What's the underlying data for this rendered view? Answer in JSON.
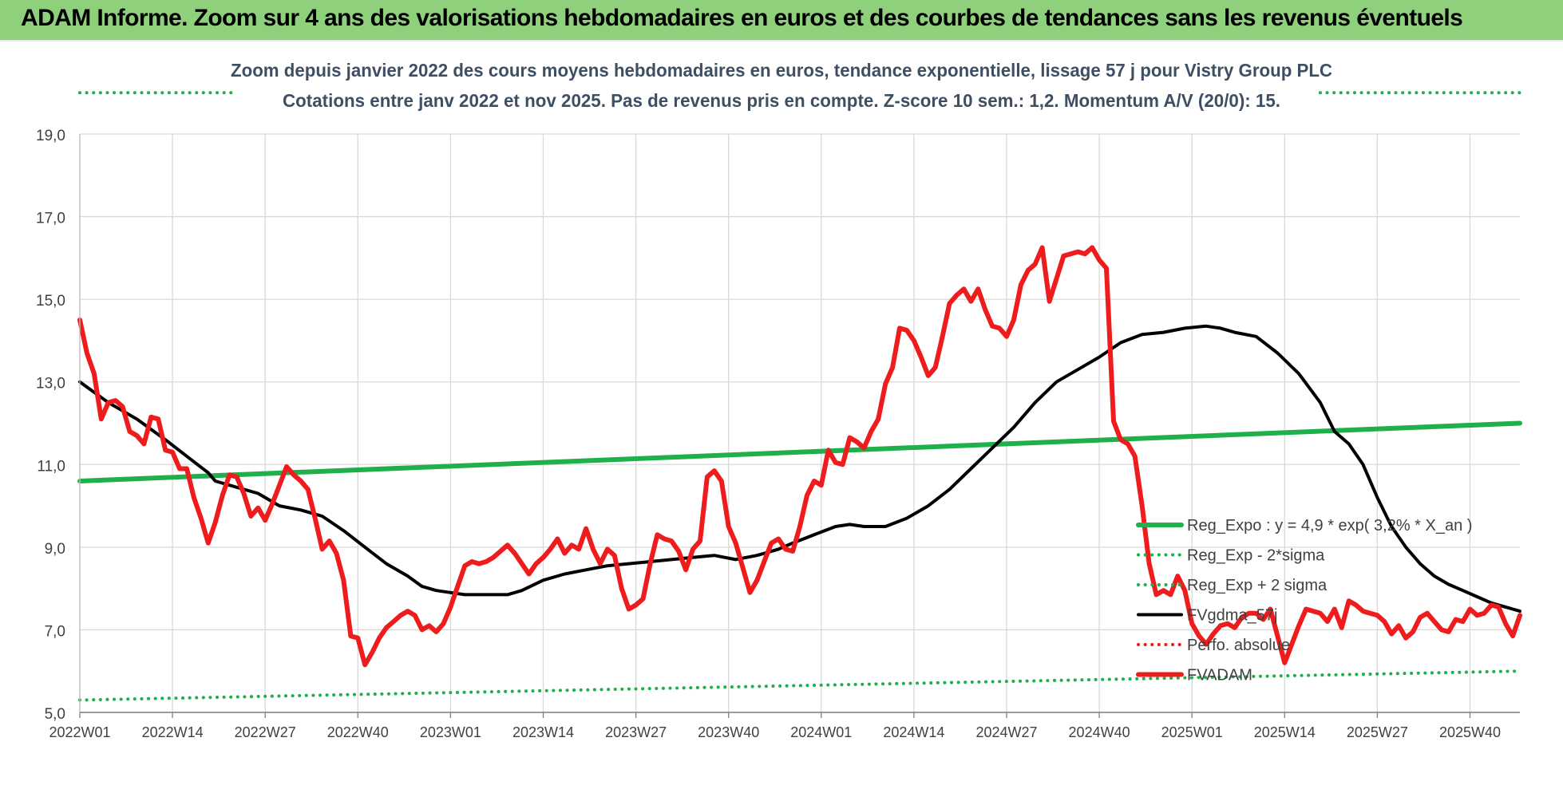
{
  "banner": {
    "title": "ADAM Informe. Zoom sur 4 ans des valorisations hebdomadaires en euros et des courbes de tendances sans les revenus éventuels"
  },
  "colors": {
    "banner": "#8fd07d",
    "green": "#1fb04b",
    "red": "#ee1c1c",
    "black": "#000000",
    "grid": "#d9d9d9",
    "title": "#3f4f63"
  },
  "chart_data": {
    "type": "line",
    "title_line1": "Zoom depuis janvier 2022 des cours moyens hebdomadaires en euros, tendance exponentielle, lissage 57 j pour Vistry Group PLC",
    "title_line2": "Cotations entre janv 2022 et nov 2025. Pas de revenus pris en compte. Z-score 10 sem.: 1,2. Momentum A/V (20/0): 15.",
    "ylim": [
      5,
      19
    ],
    "yticks": [
      "5,0",
      "7,0",
      "9,0",
      "11,0",
      "13,0",
      "15,0",
      "17,0",
      "19,0"
    ],
    "xlim": [
      0,
      202
    ],
    "xticks": [
      {
        "label": "2022W01",
        "x": 0
      },
      {
        "label": "2022W14",
        "x": 13
      },
      {
        "label": "2022W27",
        "x": 26
      },
      {
        "label": "2022W40",
        "x": 39
      },
      {
        "label": "2023W01",
        "x": 52
      },
      {
        "label": "2023W14",
        "x": 65
      },
      {
        "label": "2023W27",
        "x": 78
      },
      {
        "label": "2023W40",
        "x": 91
      },
      {
        "label": "2024W01",
        "x": 104
      },
      {
        "label": "2024W14",
        "x": 117
      },
      {
        "label": "2024W27",
        "x": 130
      },
      {
        "label": "2024W40",
        "x": 143
      },
      {
        "label": "2025W01",
        "x": 156
      },
      {
        "label": "2025W14",
        "x": 169
      },
      {
        "label": "2025W27",
        "x": 182
      },
      {
        "label": "2025W40",
        "x": 195
      }
    ],
    "legend": [
      {
        "label": "Reg_Expo : y = 4,9 * exp( 3,2% *  X_an )",
        "color": "#1fb04b",
        "style": "solid-thick"
      },
      {
        "label": "Reg_Exp - 2*sigma",
        "color": "#1fb04b",
        "style": "dotted"
      },
      {
        "label": "Reg_Exp + 2 sigma",
        "color": "#1fb04b",
        "style": "dotted"
      },
      {
        "label": "FVgdma_57j",
        "color": "#000000",
        "style": "solid"
      },
      {
        "label": "Perfo. absolue",
        "color": "#ee1c1c",
        "style": "dotted"
      },
      {
        "label": "FVADAM",
        "color": "#ee1c1c",
        "style": "solid-thick"
      }
    ],
    "series": [
      {
        "name": "Reg_Expo",
        "color": "#1fb04b",
        "points": [
          [
            0,
            10.6
          ],
          [
            202,
            12.0
          ]
        ]
      },
      {
        "name": "Reg_Exp - 2*sigma",
        "color": "#1fb04b",
        "points": [
          [
            0,
            5.3
          ],
          [
            202,
            6.0
          ]
        ]
      },
      {
        "name": "Reg_Exp + 2 sigma",
        "color": "#1fb04b",
        "segments": [
          [
            [
              0,
              20.0
            ],
            [
              22,
              20.0
            ]
          ],
          [
            [
              174,
              20.0
            ],
            [
              202,
              20.0
            ]
          ]
        ]
      },
      {
        "name": "FVgdma_57j",
        "color": "#000000",
        "points": [
          [
            0,
            13.0
          ],
          [
            4,
            12.5
          ],
          [
            8,
            12.1
          ],
          [
            12,
            11.6
          ],
          [
            15,
            11.2
          ],
          [
            18,
            10.8
          ],
          [
            19,
            10.6
          ],
          [
            22,
            10.45
          ],
          [
            25,
            10.3
          ],
          [
            28,
            10.0
          ],
          [
            31,
            9.9
          ],
          [
            34,
            9.75
          ],
          [
            37,
            9.4
          ],
          [
            40,
            9.0
          ],
          [
            43,
            8.6
          ],
          [
            46,
            8.3
          ],
          [
            48,
            8.05
          ],
          [
            50,
            7.95
          ],
          [
            52,
            7.9
          ],
          [
            54,
            7.85
          ],
          [
            57,
            7.85
          ],
          [
            60,
            7.85
          ],
          [
            62,
            7.95
          ],
          [
            65,
            8.2
          ],
          [
            68,
            8.35
          ],
          [
            71,
            8.45
          ],
          [
            74,
            8.55
          ],
          [
            77,
            8.6
          ],
          [
            80,
            8.65
          ],
          [
            83,
            8.7
          ],
          [
            86,
            8.75
          ],
          [
            89,
            8.8
          ],
          [
            92,
            8.7
          ],
          [
            95,
            8.8
          ],
          [
            98,
            8.95
          ],
          [
            100,
            9.1
          ],
          [
            103,
            9.3
          ],
          [
            106,
            9.5
          ],
          [
            108,
            9.55
          ],
          [
            110,
            9.5
          ],
          [
            113,
            9.5
          ],
          [
            116,
            9.7
          ],
          [
            119,
            10.0
          ],
          [
            122,
            10.4
          ],
          [
            125,
            10.9
          ],
          [
            128,
            11.4
          ],
          [
            131,
            11.9
          ],
          [
            134,
            12.5
          ],
          [
            137,
            13.0
          ],
          [
            140,
            13.3
          ],
          [
            143,
            13.6
          ],
          [
            146,
            13.95
          ],
          [
            149,
            14.15
          ],
          [
            152,
            14.2
          ],
          [
            155,
            14.3
          ],
          [
            158,
            14.35
          ],
          [
            160,
            14.3
          ],
          [
            162,
            14.2
          ],
          [
            165,
            14.1
          ],
          [
            168,
            13.7
          ],
          [
            171,
            13.2
          ],
          [
            174,
            12.5
          ],
          [
            176,
            11.8
          ],
          [
            178,
            11.5
          ],
          [
            180,
            11.0
          ],
          [
            182,
            10.2
          ],
          [
            184,
            9.5
          ],
          [
            186,
            9.0
          ],
          [
            188,
            8.6
          ],
          [
            190,
            8.3
          ],
          [
            192,
            8.1
          ],
          [
            194,
            7.95
          ],
          [
            196,
            7.8
          ],
          [
            198,
            7.65
          ],
          [
            200,
            7.55
          ],
          [
            202,
            7.45
          ]
        ]
      },
      {
        "name": "FVADAM",
        "color": "#ee1c1c",
        "points": [
          [
            0,
            14.5
          ],
          [
            1,
            13.7
          ],
          [
            2,
            13.2
          ],
          [
            3,
            12.1
          ],
          [
            4,
            12.5
          ],
          [
            5,
            12.55
          ],
          [
            6,
            12.4
          ],
          [
            7,
            11.8
          ],
          [
            8,
            11.7
          ],
          [
            9,
            11.5
          ],
          [
            10,
            12.15
          ],
          [
            11,
            12.1
          ],
          [
            12,
            11.35
          ],
          [
            13,
            11.3
          ],
          [
            14,
            10.9
          ],
          [
            15,
            10.9
          ],
          [
            16,
            10.2
          ],
          [
            17,
            9.7
          ],
          [
            18,
            9.1
          ],
          [
            19,
            9.6
          ],
          [
            20,
            10.25
          ],
          [
            21,
            10.75
          ],
          [
            22,
            10.7
          ],
          [
            23,
            10.3
          ],
          [
            24,
            9.75
          ],
          [
            25,
            9.95
          ],
          [
            26,
            9.65
          ],
          [
            27,
            10.05
          ],
          [
            28,
            10.5
          ],
          [
            29,
            10.95
          ],
          [
            30,
            10.75
          ],
          [
            31,
            10.6
          ],
          [
            32,
            10.4
          ],
          [
            33,
            9.7
          ],
          [
            34,
            8.95
          ],
          [
            35,
            9.15
          ],
          [
            36,
            8.85
          ],
          [
            37,
            8.2
          ],
          [
            38,
            6.85
          ],
          [
            39,
            6.8
          ],
          [
            40,
            6.15
          ],
          [
            41,
            6.45
          ],
          [
            42,
            6.8
          ],
          [
            43,
            7.05
          ],
          [
            44,
            7.2
          ],
          [
            45,
            7.35
          ],
          [
            46,
            7.45
          ],
          [
            47,
            7.35
          ],
          [
            48,
            7.0
          ],
          [
            49,
            7.1
          ],
          [
            50,
            6.95
          ],
          [
            51,
            7.15
          ],
          [
            52,
            7.55
          ],
          [
            53,
            8.05
          ],
          [
            54,
            8.55
          ],
          [
            55,
            8.65
          ],
          [
            56,
            8.6
          ],
          [
            57,
            8.65
          ],
          [
            58,
            8.75
          ],
          [
            59,
            8.9
          ],
          [
            60,
            9.05
          ],
          [
            61,
            8.85
          ],
          [
            62,
            8.6
          ],
          [
            63,
            8.35
          ],
          [
            64,
            8.6
          ],
          [
            65,
            8.75
          ],
          [
            66,
            8.95
          ],
          [
            67,
            9.2
          ],
          [
            68,
            8.85
          ],
          [
            69,
            9.05
          ],
          [
            70,
            8.95
          ],
          [
            71,
            9.45
          ],
          [
            72,
            8.95
          ],
          [
            73,
            8.6
          ],
          [
            74,
            8.95
          ],
          [
            75,
            8.8
          ],
          [
            76,
            8.0
          ],
          [
            77,
            7.5
          ],
          [
            78,
            7.6
          ],
          [
            79,
            7.75
          ],
          [
            80,
            8.6
          ],
          [
            81,
            9.3
          ],
          [
            82,
            9.2
          ],
          [
            83,
            9.15
          ],
          [
            84,
            8.9
          ],
          [
            85,
            8.45
          ],
          [
            86,
            8.95
          ],
          [
            87,
            9.15
          ],
          [
            88,
            10.7
          ],
          [
            89,
            10.85
          ],
          [
            90,
            10.6
          ],
          [
            91,
            9.5
          ],
          [
            92,
            9.1
          ],
          [
            93,
            8.5
          ],
          [
            94,
            7.9
          ],
          [
            95,
            8.2
          ],
          [
            96,
            8.65
          ],
          [
            97,
            9.1
          ],
          [
            98,
            9.2
          ],
          [
            99,
            8.95
          ],
          [
            100,
            8.9
          ],
          [
            101,
            9.5
          ],
          [
            102,
            10.25
          ],
          [
            103,
            10.6
          ],
          [
            104,
            10.5
          ],
          [
            105,
            11.35
          ],
          [
            106,
            11.05
          ],
          [
            107,
            11.0
          ],
          [
            108,
            11.65
          ],
          [
            109,
            11.55
          ],
          [
            110,
            11.4
          ],
          [
            111,
            11.8
          ],
          [
            112,
            12.1
          ],
          [
            113,
            12.95
          ],
          [
            114,
            13.35
          ],
          [
            115,
            14.3
          ],
          [
            116,
            14.25
          ],
          [
            117,
            14.0
          ],
          [
            118,
            13.6
          ],
          [
            119,
            13.15
          ],
          [
            120,
            13.35
          ],
          [
            121,
            14.1
          ],
          [
            122,
            14.9
          ],
          [
            123,
            15.1
          ],
          [
            124,
            15.25
          ],
          [
            125,
            14.95
          ],
          [
            126,
            15.25
          ],
          [
            127,
            14.75
          ],
          [
            128,
            14.35
          ],
          [
            129,
            14.3
          ],
          [
            130,
            14.1
          ],
          [
            131,
            14.5
          ],
          [
            132,
            15.35
          ],
          [
            133,
            15.7
          ],
          [
            134,
            15.85
          ],
          [
            135,
            16.25
          ],
          [
            136,
            14.95
          ],
          [
            137,
            15.5
          ],
          [
            138,
            16.05
          ],
          [
            139,
            16.1
          ],
          [
            140,
            16.15
          ],
          [
            141,
            16.1
          ],
          [
            142,
            16.25
          ],
          [
            143,
            15.95
          ],
          [
            144,
            15.75
          ],
          [
            145,
            12.05
          ],
          [
            146,
            11.6
          ],
          [
            147,
            11.5
          ],
          [
            148,
            11.2
          ],
          [
            149,
            10.0
          ],
          [
            150,
            8.6
          ],
          [
            151,
            7.85
          ],
          [
            152,
            7.95
          ],
          [
            153,
            7.85
          ],
          [
            154,
            8.3
          ],
          [
            155,
            7.95
          ],
          [
            156,
            7.15
          ],
          [
            157,
            6.85
          ],
          [
            158,
            6.65
          ],
          [
            159,
            6.9
          ],
          [
            160,
            7.1
          ],
          [
            161,
            7.15
          ],
          [
            162,
            7.05
          ],
          [
            163,
            7.3
          ],
          [
            164,
            7.4
          ],
          [
            165,
            7.4
          ],
          [
            166,
            7.25
          ],
          [
            167,
            7.5
          ],
          [
            168,
            6.85
          ],
          [
            169,
            6.2
          ],
          [
            170,
            6.65
          ],
          [
            171,
            7.1
          ],
          [
            172,
            7.5
          ],
          [
            173,
            7.45
          ],
          [
            174,
            7.4
          ],
          [
            175,
            7.2
          ],
          [
            176,
            7.5
          ],
          [
            177,
            7.05
          ],
          [
            178,
            7.7
          ],
          [
            179,
            7.6
          ],
          [
            180,
            7.45
          ],
          [
            181,
            7.4
          ],
          [
            182,
            7.35
          ],
          [
            183,
            7.2
          ],
          [
            184,
            6.9
          ],
          [
            185,
            7.1
          ],
          [
            186,
            6.8
          ],
          [
            187,
            6.95
          ],
          [
            188,
            7.3
          ],
          [
            189,
            7.4
          ],
          [
            190,
            7.2
          ],
          [
            191,
            7.0
          ],
          [
            192,
            6.95
          ],
          [
            193,
            7.25
          ],
          [
            194,
            7.2
          ],
          [
            195,
            7.5
          ],
          [
            196,
            7.35
          ],
          [
            197,
            7.4
          ],
          [
            198,
            7.6
          ],
          [
            199,
            7.55
          ],
          [
            200,
            7.15
          ],
          [
            201,
            6.85
          ],
          [
            202,
            7.35
          ]
        ]
      }
    ]
  }
}
